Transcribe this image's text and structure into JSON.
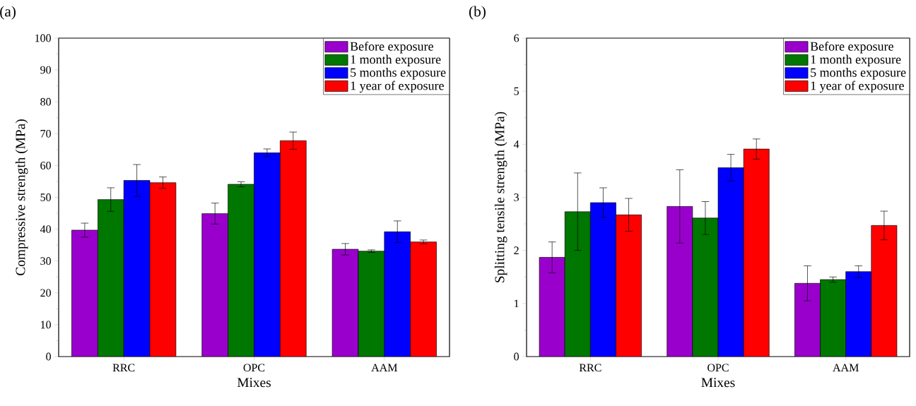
{
  "chart_data": [
    {
      "type": "bar",
      "title": "(a)",
      "xlabel": "Mixes",
      "ylabel": "Compressive strength (MPa)",
      "categories": [
        "RRC",
        "OPC",
        "AAM"
      ],
      "ylim": [
        0,
        100
      ],
      "yticks": [
        0,
        10,
        20,
        30,
        40,
        50,
        60,
        70,
        80,
        90,
        100
      ],
      "legend": "top right",
      "series": [
        {
          "name": "Before exposure",
          "color": "#9900cc",
          "values": [
            39.7,
            44.9,
            33.7
          ],
          "errors": [
            2.2,
            3.3,
            1.8
          ]
        },
        {
          "name": "1 month exposure",
          "color": "#007700",
          "values": [
            49.3,
            54.1,
            33.1
          ],
          "errors": [
            3.7,
            0.8,
            0.4
          ]
        },
        {
          "name": "5 months exposure",
          "color": "#0000ff",
          "values": [
            55.3,
            64.0,
            39.2
          ],
          "errors": [
            5.0,
            1.2,
            3.4
          ]
        },
        {
          "name": "1 year of exposure",
          "color": "#ff0000",
          "values": [
            54.6,
            67.8,
            36.0
          ],
          "errors": [
            1.8,
            2.7,
            0.6
          ]
        }
      ]
    },
    {
      "type": "bar",
      "title": "(b)",
      "xlabel": "Mixes",
      "ylabel": "Splitting tensile strength (MPa)",
      "categories": [
        "RRC",
        "OPC",
        "AAM"
      ],
      "ylim": [
        0,
        6
      ],
      "yticks": [
        0,
        1,
        2,
        3,
        4,
        5,
        6
      ],
      "legend": "top right",
      "series": [
        {
          "name": "Before exposure",
          "color": "#9900cc",
          "values": [
            1.87,
            2.83,
            1.38
          ],
          "errors": [
            0.29,
            0.69,
            0.33
          ]
        },
        {
          "name": "1 month exposure",
          "color": "#007700",
          "values": [
            2.73,
            2.61,
            1.45
          ],
          "errors": [
            0.73,
            0.31,
            0.05
          ]
        },
        {
          "name": "5 months exposure",
          "color": "#0000ff",
          "values": [
            2.9,
            3.56,
            1.6
          ],
          "errors": [
            0.28,
            0.25,
            0.11
          ]
        },
        {
          "name": "1 year of exposure",
          "color": "#ff0000",
          "values": [
            2.67,
            3.91,
            2.47
          ],
          "errors": [
            0.31,
            0.19,
            0.27
          ]
        }
      ]
    }
  ]
}
